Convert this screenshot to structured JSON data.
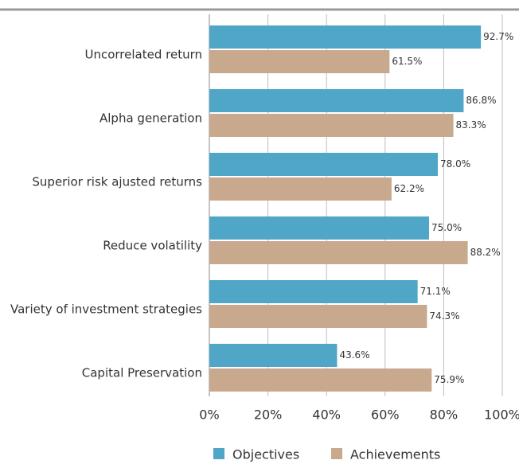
{
  "chart_data": {
    "type": "barh",
    "categories": [
      "Uncorrelated return",
      "Alpha generation",
      "Superior risk ajusted returns",
      "Reduce volatility",
      "Variety of investment strategies",
      "Capital Preservation"
    ],
    "series": [
      {
        "name": "Objectives",
        "color": "#4fa6c6",
        "values": [
          92.7,
          86.8,
          78.0,
          75.0,
          71.1,
          43.6
        ],
        "value_labels": [
          "92.7%",
          "86.8%",
          "78.0%",
          "75.0%",
          "71.1%",
          "43.6%"
        ]
      },
      {
        "name": "Achievements",
        "color": "#c8a98e",
        "values": [
          61.5,
          83.3,
          62.2,
          88.2,
          74.3,
          75.9
        ],
        "value_labels": [
          "61.5%",
          "83.3%",
          "62.2%",
          "88.2%",
          "74.3%",
          "75.9%"
        ]
      }
    ],
    "xlim": [
      0,
      100
    ],
    "xticks": [
      {
        "value": 0,
        "label": "0%"
      },
      {
        "value": 20,
        "label": "20%"
      },
      {
        "value": 40,
        "label": "40%"
      },
      {
        "value": 60,
        "label": "60%"
      },
      {
        "value": 80,
        "label": "80%"
      },
      {
        "value": 100,
        "label": "100%"
      }
    ],
    "grid": true,
    "legend": "bottom"
  }
}
